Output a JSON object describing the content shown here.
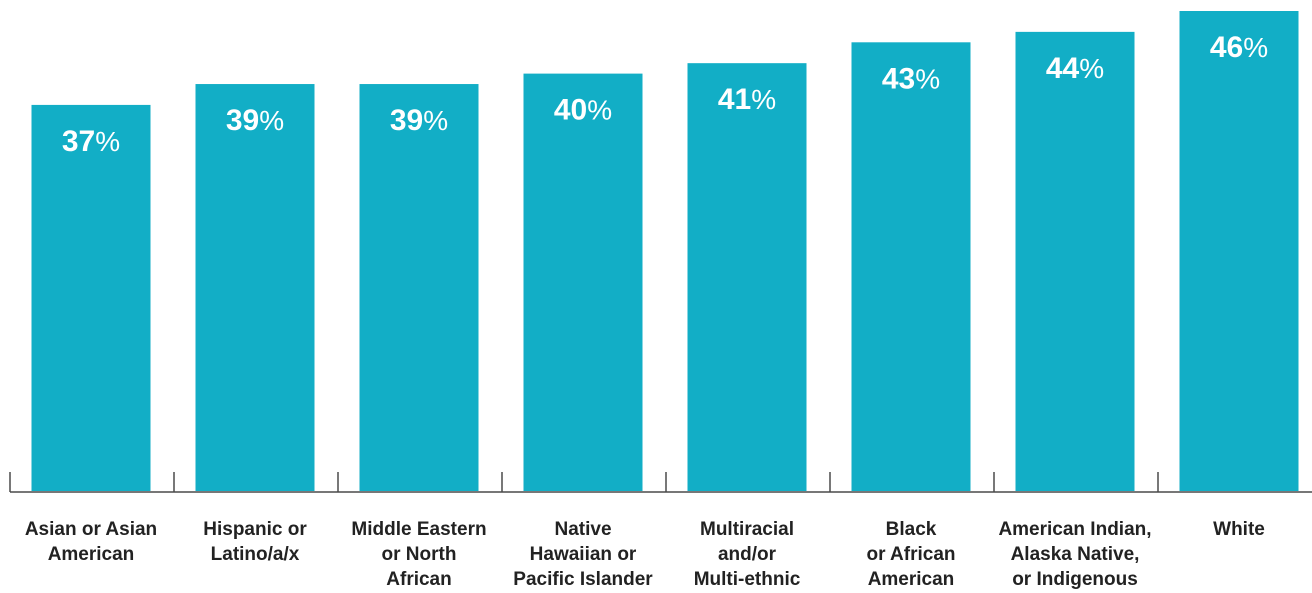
{
  "chart_data": {
    "type": "bar",
    "categories": [
      [
        "Asian or Asian",
        "American"
      ],
      [
        "Hispanic or",
        "Latino/a/x"
      ],
      [
        "Middle Eastern",
        "or North",
        "African"
      ],
      [
        "Native",
        "Hawaiian or",
        "Pacific Islander"
      ],
      [
        "Multiracial",
        "and/or",
        "Multi-ethnic"
      ],
      [
        "Black",
        "or African",
        "American"
      ],
      [
        "American Indian,",
        "Alaska Native,",
        "or Indigenous"
      ],
      [
        "White"
      ]
    ],
    "values": [
      37,
      39,
      39,
      40,
      41,
      43,
      44,
      46
    ],
    "value_suffix": "%",
    "bar_color": "#12aec6",
    "axis_color": "#4a4a4a",
    "label_color": "#222222",
    "value_label_color": "#ffffff",
    "ylim": [
      0,
      46
    ]
  }
}
